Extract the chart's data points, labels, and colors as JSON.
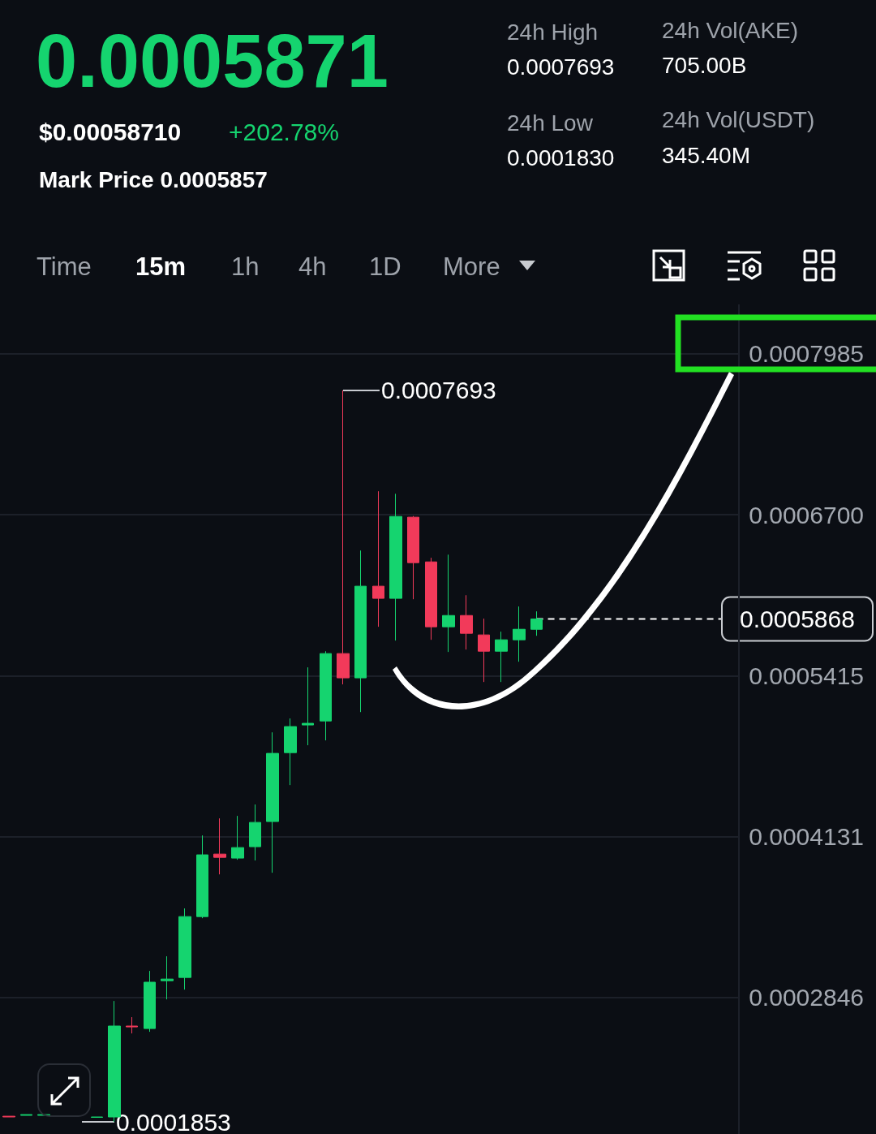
{
  "chart_data": {
    "type": "candlestick",
    "title": "0.0005871",
    "annotations": [
      "$0.00058710",
      "+202.78%",
      "Mark Price 0.0005857",
      "24h High",
      "0.0007693",
      "24h Low",
      "0.0001830",
      "24h Vol(AKE)",
      "705.00B",
      "24h Vol(USDT)",
      "345.40M",
      "Time",
      "15m",
      "1h",
      "4h",
      "1D",
      "More",
      "0.0007693",
      "0.0001853"
    ],
    "categories": [
      null,
      null,
      null,
      null,
      null,
      null,
      null,
      null,
      null,
      null,
      null,
      null,
      null,
      null,
      null,
      null,
      null,
      null,
      null,
      null,
      null,
      null,
      null,
      null,
      null,
      null,
      null,
      null,
      null,
      null,
      null,
      null,
      null,
      null,
      null,
      null,
      null,
      null,
      null,
      null,
      null,
      null
    ],
    "ohlc": [
      [
        0.0001898,
        0.0001898,
        0.0001892,
        0.0001892
      ],
      [
        0.0001905,
        0.0001911,
        0.0001905,
        0.0001911
      ],
      [
        0.0001905,
        0.0001911,
        0.0001905,
        0.0001911
      ],
      null,
      null,
      [
        0.0001889,
        0.0001892,
        0.0001889,
        0.0001892
      ],
      [
        0.0001892,
        0.0002818,
        0.0001853,
        0.0002618
      ],
      [
        0.0002618,
        0.0002689,
        0.0002559,
        0.0002611
      ],
      [
        0.0002598,
        0.0003058,
        0.0002572,
        0.0002968
      ],
      [
        0.000298,
        0.0003175,
        0.0002831,
        0.0002993
      ],
      [
        0.0003006,
        0.0003557,
        0.0002909,
        0.0003492
      ],
      [
        0.0003492,
        0.000414,
        0.0003479,
        0.0003985
      ],
      [
        0.0003991,
        0.0004276,
        0.0003829,
        0.0003965
      ],
      [
        0.0003959,
        0.0004296,
        0.0003946,
        0.0004043
      ],
      [
        0.000405,
        0.0004387,
        0.000394,
        0.0004244
      ],
      [
        0.0004251,
        0.0004963,
        0.0003842,
        0.0004795
      ],
      [
        0.0004801,
        0.0005074,
        0.0004542,
        0.0005009
      ],
      [
        0.0005022,
        0.0005482,
        0.000486,
        0.0005035
      ],
      [
        0.0005054,
        0.0005611,
        0.0004899,
        0.0005592
      ],
      [
        0.0005592,
        0.0007693,
        0.0005346,
        0.0005398
      ],
      [
        0.0005398,
        0.0006415,
        0.0005125,
        0.000613
      ],
      [
        0.000613,
        0.0006888,
        0.0005806,
        0.0006033
      ],
      [
        0.0006033,
        0.0006868,
        0.0005696,
        0.0006687
      ],
      [
        0.0006681,
        0.000669,
        0.0006026,
        0.0006318
      ],
      [
        0.0006324,
        0.0006357,
        0.0005702,
        0.0005806
      ],
      [
        0.0005806,
        0.0006382,
        0.0005605,
        0.0005896
      ],
      [
        0.0005896,
        0.0006058,
        0.0005624,
        0.0005754
      ],
      [
        0.0005741,
        0.0005871,
        0.0005365,
        0.0005611
      ],
      [
        0.0005611,
        0.0005767,
        0.0005365,
        0.0005702
      ],
      [
        0.0005702,
        0.0005968,
        0.0005527,
        0.0005786
      ],
      [
        0.0005786,
        0.0005929,
        0.0005734,
        0.0005868
      ],
      null,
      null,
      null,
      null,
      null,
      null,
      null,
      null,
      null,
      null,
      null
    ],
    "colors": [
      "#f23a5a",
      "#15d46f",
      "#15d46f",
      null,
      null,
      "#15d46f",
      "#15d46f",
      "#f23a5a",
      "#15d46f",
      "#15d46f",
      "#15d46f",
      "#15d46f",
      "#f23a5a",
      "#15d46f",
      "#15d46f",
      "#15d46f",
      "#15d46f",
      "#15d46f",
      "#15d46f",
      "#f23a5a",
      "#15d46f",
      "#f23a5a",
      "#15d46f",
      "#f23a5a",
      "#f23a5a",
      "#15d46f",
      "#f23a5a",
      "#f23a5a",
      "#15d46f",
      "#15d46f",
      "#15d46f",
      null,
      null,
      null,
      null,
      null,
      null,
      null,
      null,
      null,
      null,
      null
    ],
    "ylim": [
      0.0001756,
      0.000838
    ],
    "yticks": [
      0.0002846,
      0.0004131,
      0.0005415,
      {
        "value": 0.00067,
        "label": "0.0006700"
      },
      0.0007985
    ],
    "ref_lines": [
      {
        "axis": "y",
        "value": 0.0005868,
        "label": "0.0005868",
        "line_style": "dashed",
        "color": "#ffffff"
      }
    ],
    "grid": "y",
    "tick_labels": "y"
  }
}
